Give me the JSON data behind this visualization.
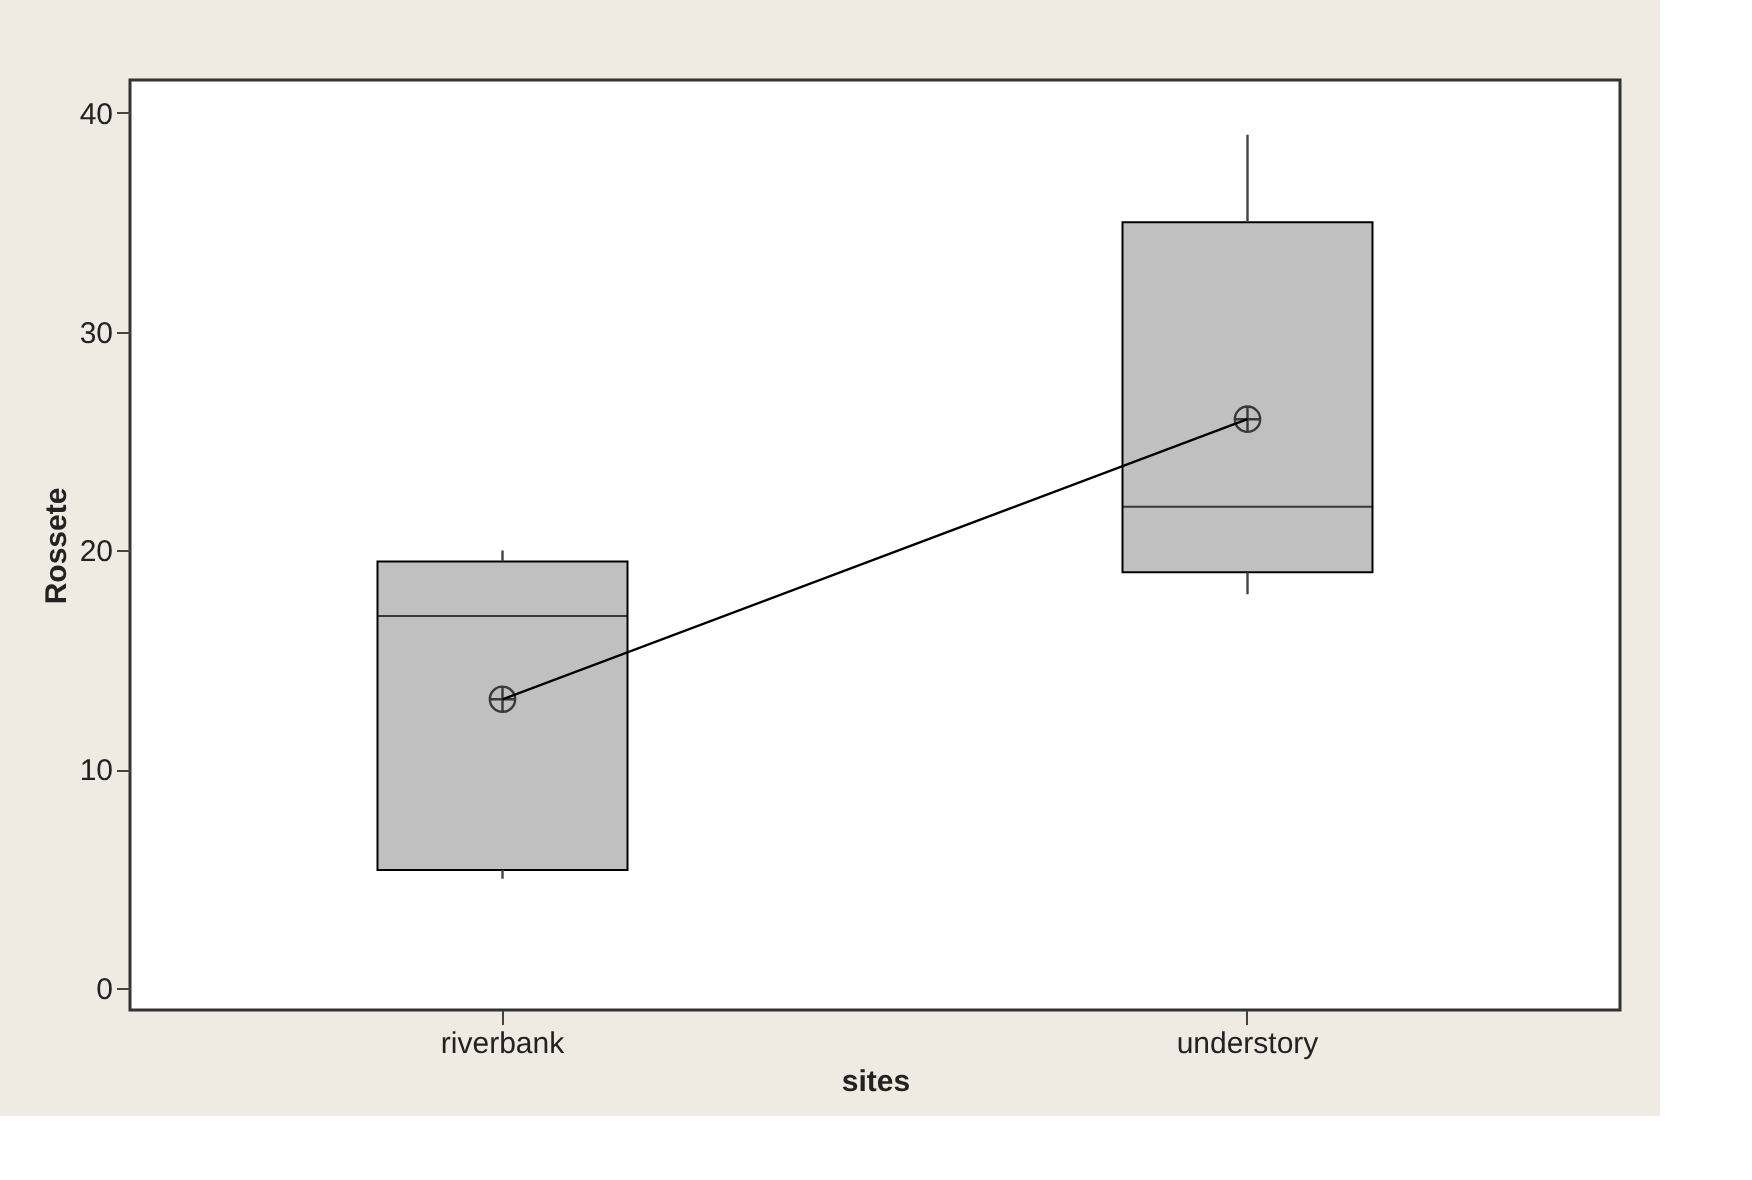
{
  "chart_data": {
    "type": "box",
    "categories": [
      "riverbank",
      "understory"
    ],
    "series": [
      {
        "color": "#c0c0c0",
        "boxes": [
          {
            "low": 5,
            "q1": 5.4,
            "median": 17,
            "q3": 19.5,
            "high": 20,
            "mean": 13.2
          },
          {
            "low": 18,
            "q1": 19,
            "median": 22,
            "q3": 35,
            "high": 39,
            "mean": 26
          }
        ]
      },
      {
        "type": "line",
        "color": "#000000",
        "values": [
          13.2,
          26
        ]
      }
    ],
    "xlabel": "sites",
    "ylabel": "Rossete",
    "ylim": [
      -1,
      41.5
    ],
    "yticks": [
      0,
      10,
      20,
      30,
      40
    ],
    "grid": false
  }
}
